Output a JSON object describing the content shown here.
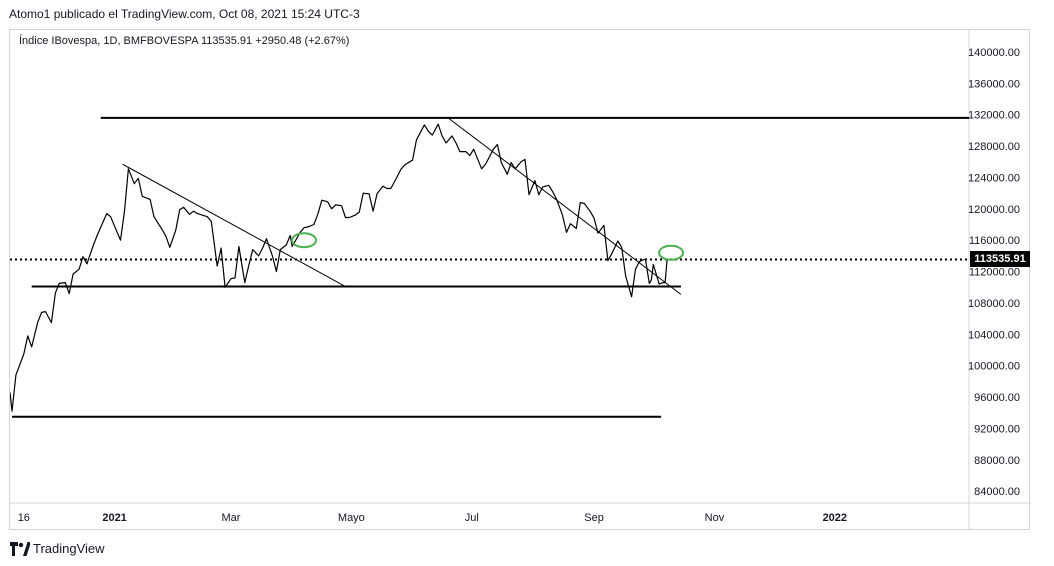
{
  "publication": {
    "text": "Atomo1 publicado el TradingView.com, Oct 08, 2021 15:24 UTC-3"
  },
  "symbol": {
    "text": "Índice IBovespa, 1D, BMFBOVESPA  113535.91  +2950.48 (+2.67%)"
  },
  "brand": {
    "name": "TradingView",
    "icon": "tradingview-logo-icon"
  },
  "colors": {
    "price_line": "#000000",
    "drawing": "#000000",
    "highlight_circle": "#4caf50",
    "last_price_bg": "#000000",
    "last_price_text": "#ffffff",
    "axis_border": "#d1d4dc"
  },
  "chart_data": {
    "type": "line",
    "title": "Índice IBovespa, 1D, BMFBOVESPA",
    "last_value_label": "113535.91",
    "last_value": 113535.91,
    "change_label": "+2950.48 (+2.67%)",
    "xlabel": "",
    "ylabel": "",
    "ylim": [
      82500,
      142800
    ],
    "xlim": [
      "2020-11-09",
      "2022-03-10"
    ],
    "x_ticks": [
      {
        "date": "2020-11-16",
        "label": "16",
        "bold": false
      },
      {
        "date": "2021-01-01",
        "label": "2021",
        "bold": true
      },
      {
        "date": "2021-03-01",
        "label": "Mar",
        "bold": false
      },
      {
        "date": "2021-05-01",
        "label": "Mayo",
        "bold": false
      },
      {
        "date": "2021-07-01",
        "label": "Jul",
        "bold": false
      },
      {
        "date": "2021-09-01",
        "label": "Sep",
        "bold": false
      },
      {
        "date": "2021-11-01",
        "label": "Nov",
        "bold": false
      },
      {
        "date": "2022-01-01",
        "label": "2022",
        "bold": true
      }
    ],
    "y_ticks": [
      {
        "value": 140000,
        "label": "140000.00"
      },
      {
        "value": 136000,
        "label": "136000.00"
      },
      {
        "value": 132000,
        "label": "132000.00"
      },
      {
        "value": 128000,
        "label": "128000.00"
      },
      {
        "value": 124000,
        "label": "124000.00"
      },
      {
        "value": 120000,
        "label": "120000.00"
      },
      {
        "value": 116000,
        "label": "116000.00"
      },
      {
        "value": 112000,
        "label": "112000.00"
      },
      {
        "value": 108000,
        "label": "108000.00"
      },
      {
        "value": 104000,
        "label": "104000.00"
      },
      {
        "value": 100000,
        "label": "100000.00"
      },
      {
        "value": 96000,
        "label": "96000.00"
      },
      {
        "value": 92000,
        "label": "92000.00"
      },
      {
        "value": 88000,
        "label": "88000.00"
      },
      {
        "value": 84000,
        "label": "84000.00"
      }
    ],
    "series": [
      {
        "points": [
          [
            "2020-11-09",
            96600
          ],
          [
            "2020-11-10",
            94200
          ],
          [
            "2020-11-12",
            98800
          ],
          [
            "2020-11-16",
            101500
          ],
          [
            "2020-11-18",
            103800
          ],
          [
            "2020-11-20",
            102400
          ],
          [
            "2020-11-23",
            105500
          ],
          [
            "2020-11-25",
            106800
          ],
          [
            "2020-11-27",
            106900
          ],
          [
            "2020-11-30",
            105500
          ],
          [
            "2020-12-02",
            109300
          ],
          [
            "2020-12-04",
            110500
          ],
          [
            "2020-12-07",
            110600
          ],
          [
            "2020-12-09",
            109200
          ],
          [
            "2020-12-11",
            111700
          ],
          [
            "2020-12-14",
            112300
          ],
          [
            "2020-12-16",
            113900
          ],
          [
            "2020-12-18",
            113000
          ],
          [
            "2020-12-21",
            115200
          ],
          [
            "2020-12-23",
            116500
          ],
          [
            "2020-12-28",
            119400
          ],
          [
            "2020-12-30",
            119000
          ],
          [
            "2021-01-04",
            116000
          ],
          [
            "2021-01-06",
            119600
          ],
          [
            "2021-01-08",
            125100
          ],
          [
            "2021-01-11",
            123200
          ],
          [
            "2021-01-13",
            123900
          ],
          [
            "2021-01-15",
            121600
          ],
          [
            "2021-01-19",
            121200
          ],
          [
            "2021-01-21",
            119000
          ],
          [
            "2021-01-25",
            117400
          ],
          [
            "2021-01-27",
            116500
          ],
          [
            "2021-01-29",
            115100
          ],
          [
            "2021-02-01",
            117300
          ],
          [
            "2021-02-03",
            119900
          ],
          [
            "2021-02-05",
            120200
          ],
          [
            "2021-02-08",
            119300
          ],
          [
            "2021-02-10",
            119700
          ],
          [
            "2021-02-12",
            119400
          ],
          [
            "2021-02-17",
            119000
          ],
          [
            "2021-02-19",
            118400
          ],
          [
            "2021-02-22",
            112700
          ],
          [
            "2021-02-24",
            115000
          ],
          [
            "2021-02-26",
            110000
          ],
          [
            "2021-03-01",
            111100
          ],
          [
            "2021-03-03",
            111200
          ],
          [
            "2021-03-05",
            115200
          ],
          [
            "2021-03-08",
            110600
          ],
          [
            "2021-03-10",
            112800
          ],
          [
            "2021-03-12",
            114800
          ],
          [
            "2021-03-15",
            114000
          ],
          [
            "2021-03-17",
            115000
          ],
          [
            "2021-03-19",
            116200
          ],
          [
            "2021-03-22",
            114000
          ],
          [
            "2021-03-24",
            112000
          ],
          [
            "2021-03-26",
            114800
          ],
          [
            "2021-03-29",
            115400
          ],
          [
            "2021-03-31",
            116600
          ],
          [
            "2021-04-01",
            115200
          ],
          [
            "2021-04-05",
            117000
          ],
          [
            "2021-04-07",
            117600
          ],
          [
            "2021-04-09",
            117700
          ],
          [
            "2021-04-12",
            118000
          ],
          [
            "2021-04-14",
            119300
          ],
          [
            "2021-04-16",
            121100
          ],
          [
            "2021-04-19",
            120900
          ],
          [
            "2021-04-21",
            120000
          ],
          [
            "2021-04-23",
            120500
          ],
          [
            "2021-04-26",
            120400
          ],
          [
            "2021-04-28",
            118900
          ],
          [
            "2021-04-30",
            118900
          ],
          [
            "2021-05-03",
            119200
          ],
          [
            "2021-05-05",
            119600
          ],
          [
            "2021-05-07",
            122000
          ],
          [
            "2021-05-10",
            121900
          ],
          [
            "2021-05-12",
            119700
          ],
          [
            "2021-05-14",
            121900
          ],
          [
            "2021-05-17",
            122900
          ],
          [
            "2021-05-19",
            122600
          ],
          [
            "2021-05-21",
            122600
          ],
          [
            "2021-05-24",
            124000
          ],
          [
            "2021-05-26",
            125000
          ],
          [
            "2021-05-28",
            125600
          ],
          [
            "2021-06-01",
            126200
          ],
          [
            "2021-06-03",
            128800
          ],
          [
            "2021-06-07",
            130700
          ],
          [
            "2021-06-09",
            129900
          ],
          [
            "2021-06-11",
            129400
          ],
          [
            "2021-06-14",
            130800
          ],
          [
            "2021-06-16",
            129300
          ],
          [
            "2021-06-18",
            128400
          ],
          [
            "2021-06-21",
            129300
          ],
          [
            "2021-06-23",
            128400
          ],
          [
            "2021-06-25",
            127300
          ],
          [
            "2021-06-28",
            127300
          ],
          [
            "2021-06-30",
            126800
          ],
          [
            "2021-07-02",
            127600
          ],
          [
            "2021-07-06",
            125100
          ],
          [
            "2021-07-08",
            125700
          ],
          [
            "2021-07-12",
            127600
          ],
          [
            "2021-07-14",
            128200
          ],
          [
            "2021-07-16",
            125900
          ],
          [
            "2021-07-19",
            124400
          ],
          [
            "2021-07-21",
            125900
          ],
          [
            "2021-07-23",
            125100
          ],
          [
            "2021-07-26",
            126000
          ],
          [
            "2021-07-28",
            126300
          ],
          [
            "2021-07-30",
            121800
          ],
          [
            "2021-08-02",
            123600
          ],
          [
            "2021-08-04",
            121800
          ],
          [
            "2021-08-06",
            122800
          ],
          [
            "2021-08-09",
            123000
          ],
          [
            "2021-08-11",
            122200
          ],
          [
            "2021-08-13",
            121200
          ],
          [
            "2021-08-16",
            119200
          ],
          [
            "2021-08-18",
            117000
          ],
          [
            "2021-08-20",
            118100
          ],
          [
            "2021-08-23",
            117500
          ],
          [
            "2021-08-25",
            120800
          ],
          [
            "2021-08-27",
            120700
          ],
          [
            "2021-08-30",
            119700
          ],
          [
            "2021-09-01",
            118800
          ],
          [
            "2021-09-03",
            116900
          ],
          [
            "2021-09-06",
            117900
          ],
          [
            "2021-09-08",
            113400
          ],
          [
            "2021-09-10",
            114300
          ],
          [
            "2021-09-13",
            115900
          ],
          [
            "2021-09-15",
            115100
          ],
          [
            "2021-09-17",
            111400
          ],
          [
            "2021-09-20",
            108800
          ],
          [
            "2021-09-22",
            112300
          ],
          [
            "2021-09-24",
            113300
          ],
          [
            "2021-09-27",
            113600
          ],
          [
            "2021-09-29",
            110500
          ],
          [
            "2021-09-30",
            110900
          ],
          [
            "2021-10-01",
            112900
          ],
          [
            "2021-10-04",
            110400
          ],
          [
            "2021-10-06",
            110600
          ],
          [
            "2021-10-07",
            110600
          ],
          [
            "2021-10-08",
            113536
          ]
        ]
      }
    ],
    "annotations": {
      "horizontal_lines": [
        {
          "x1": "2020-12-25",
          "x2": "2022-03-10",
          "y": 131600
        },
        {
          "x1": "2020-11-20",
          "x2": "2021-10-15",
          "y": 110100
        },
        {
          "x1": "2020-11-10",
          "x2": "2021-10-05",
          "y": 93500
        }
      ],
      "trend_lines": [
        {
          "x1": "2021-01-05",
          "y1": 125700,
          "x2": "2021-04-28",
          "y2": 110100
        },
        {
          "x1": "2021-06-19",
          "y1": 131600,
          "x2": "2021-10-15",
          "y2": 109100
        }
      ],
      "dotted_line_value": 113535.91,
      "circles": [
        {
          "x": "2021-04-07",
          "y": 116000
        },
        {
          "x": "2021-10-10",
          "y": 114400
        }
      ]
    }
  }
}
